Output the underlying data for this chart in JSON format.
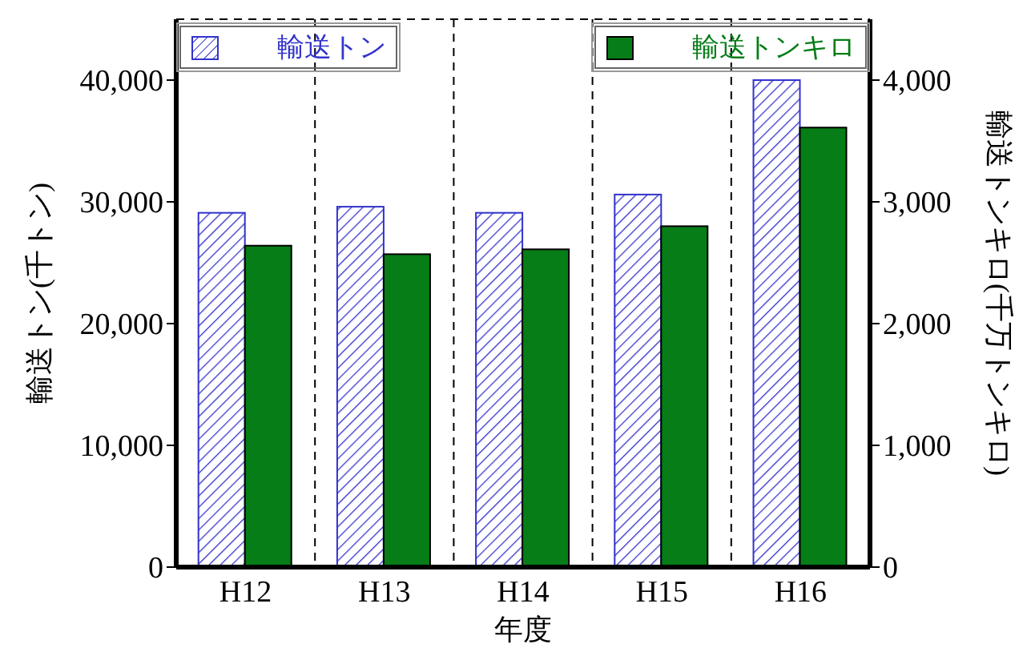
{
  "chart_data": {
    "type": "bar",
    "xlabel": "年度",
    "ylabel": "輸送トン(千トン)",
    "y2label": "輸送トンキロ(千万トンキロ)",
    "categories": [
      "H12",
      "H13",
      "H14",
      "H15",
      "H16"
    ],
    "series": [
      {
        "name": "輸送トン",
        "color": "#3333cc",
        "values": [
          29100,
          29600,
          29100,
          30600,
          40000
        ]
      },
      {
        "name": "輸送トンキロ",
        "color": "#067d16",
        "values": [
          2640,
          2570,
          2610,
          2800,
          3610
        ],
        "axis": "y2"
      }
    ],
    "ylim": [
      0,
      45000
    ],
    "yticks": [
      0,
      {
        "value": 10000,
        "label": "10,000"
      },
      {
        "value": 20000,
        "label": "20,000"
      },
      {
        "value": 30000,
        "label": "30,000"
      },
      {
        "value": 40000,
        "label": "40,000"
      }
    ],
    "y2lim": [
      0,
      4500
    ],
    "y2ticks": [
      0,
      {
        "value": 1000,
        "label": "1,000"
      },
      {
        "value": 2000,
        "label": "2,000"
      },
      {
        "value": 3000,
        "label": "3,000"
      },
      {
        "value": 4000,
        "label": "4,000"
      }
    ],
    "grid": true,
    "line_style": "dashed",
    "legend": "top"
  }
}
